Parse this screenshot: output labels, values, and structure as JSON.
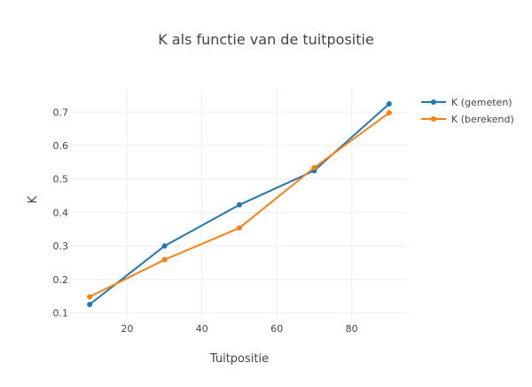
{
  "chart_data": {
    "type": "line",
    "title": "K als functie van de tuitpositie",
    "xlabel": "Tuitpositie",
    "ylabel": "K",
    "x": [
      10,
      30,
      50,
      70,
      90
    ],
    "xlim": [
      5,
      95
    ],
    "ylim": [
      0.08,
      0.77
    ],
    "xticks": [
      20,
      40,
      60,
      80
    ],
    "yticks": [
      0.1,
      0.2,
      0.3,
      0.4,
      0.5,
      0.6,
      0.7
    ],
    "grid": true,
    "legend_position": "top-right",
    "series": [
      {
        "name": "K (gemeten)",
        "color": "#1f77b4",
        "values": [
          0.125,
          0.3,
          0.423,
          0.525,
          0.725
        ]
      },
      {
        "name": "K (berekend)",
        "color": "#ff7f0e",
        "values": [
          0.148,
          0.259,
          0.354,
          0.534,
          0.698
        ]
      }
    ]
  }
}
